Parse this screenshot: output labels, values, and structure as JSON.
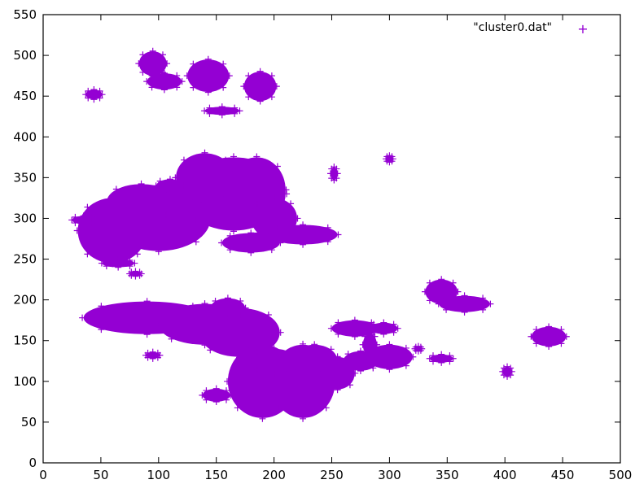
{
  "chart_data": {
    "type": "scatter",
    "title": "",
    "xlabel": "",
    "ylabel": "",
    "xlim": [
      0,
      500
    ],
    "ylim": [
      0,
      550
    ],
    "x_ticks": [
      "0",
      "50",
      "100",
      "150",
      "200",
      "250",
      "300",
      "350",
      "400",
      "450",
      "500"
    ],
    "y_ticks": [
      "0",
      "50",
      "100",
      "150",
      "200",
      "250",
      "300",
      "350",
      "400",
      "450",
      "500",
      "550"
    ],
    "grid": false,
    "legend_position": "top-right",
    "marker": "+",
    "series": [
      {
        "name": "\"cluster0.dat\"",
        "color": "#9400d3",
        "regions": [
          {
            "cx": 100,
            "cy": 300,
            "rx": 45,
            "ry": 40
          },
          {
            "cx": 60,
            "cy": 285,
            "rx": 30,
            "ry": 40
          },
          {
            "cx": 85,
            "cy": 320,
            "rx": 30,
            "ry": 22
          },
          {
            "cx": 35,
            "cy": 298,
            "rx": 10,
            "ry": 5
          },
          {
            "cx": 165,
            "cy": 330,
            "rx": 45,
            "ry": 45
          },
          {
            "cx": 140,
            "cy": 350,
            "rx": 25,
            "ry": 30
          },
          {
            "cx": 185,
            "cy": 335,
            "rx": 25,
            "ry": 40
          },
          {
            "cx": 110,
            "cy": 340,
            "rx": 12,
            "ry": 8
          },
          {
            "cx": 200,
            "cy": 300,
            "rx": 20,
            "ry": 25
          },
          {
            "cx": 225,
            "cy": 280,
            "rx": 30,
            "ry": 12
          },
          {
            "cx": 180,
            "cy": 270,
            "rx": 25,
            "ry": 12
          },
          {
            "cx": 65,
            "cy": 245,
            "rx": 14,
            "ry": 5
          },
          {
            "cx": 80,
            "cy": 232,
            "rx": 5,
            "ry": 3
          },
          {
            "cx": 90,
            "cy": 178,
            "rx": 55,
            "ry": 20
          },
          {
            "cx": 140,
            "cy": 170,
            "rx": 40,
            "ry": 25
          },
          {
            "cx": 170,
            "cy": 160,
            "rx": 35,
            "ry": 30
          },
          {
            "cx": 160,
            "cy": 190,
            "rx": 15,
            "ry": 12
          },
          {
            "cx": 190,
            "cy": 100,
            "rx": 30,
            "ry": 45
          },
          {
            "cx": 225,
            "cy": 100,
            "rx": 28,
            "ry": 45
          },
          {
            "cx": 235,
            "cy": 125,
            "rx": 20,
            "ry": 20
          },
          {
            "cx": 200,
            "cy": 125,
            "rx": 20,
            "ry": 15
          },
          {
            "cx": 255,
            "cy": 110,
            "rx": 15,
            "ry": 20
          },
          {
            "cx": 270,
            "cy": 165,
            "rx": 20,
            "ry": 10
          },
          {
            "cx": 275,
            "cy": 125,
            "rx": 15,
            "ry": 12
          },
          {
            "cx": 300,
            "cy": 130,
            "rx": 20,
            "ry": 15
          },
          {
            "cx": 295,
            "cy": 165,
            "rx": 12,
            "ry": 7
          },
          {
            "cx": 283,
            "cy": 145,
            "rx": 6,
            "ry": 14
          },
          {
            "cx": 150,
            "cy": 83,
            "rx": 12,
            "ry": 8
          },
          {
            "cx": 95,
            "cy": 132,
            "rx": 6,
            "ry": 4
          },
          {
            "cx": 95,
            "cy": 490,
            "rx": 12,
            "ry": 15
          },
          {
            "cx": 105,
            "cy": 468,
            "rx": 15,
            "ry": 10
          },
          {
            "cx": 143,
            "cy": 475,
            "rx": 18,
            "ry": 20
          },
          {
            "cx": 188,
            "cy": 462,
            "rx": 14,
            "ry": 18
          },
          {
            "cx": 155,
            "cy": 432,
            "rx": 15,
            "ry": 5
          },
          {
            "cx": 44,
            "cy": 452,
            "rx": 7,
            "ry": 6
          },
          {
            "cx": 252,
            "cy": 355,
            "rx": 3,
            "ry": 8
          },
          {
            "cx": 300,
            "cy": 373,
            "rx": 3,
            "ry": 4
          },
          {
            "cx": 345,
            "cy": 210,
            "rx": 14,
            "ry": 15
          },
          {
            "cx": 365,
            "cy": 195,
            "rx": 22,
            "ry": 10
          },
          {
            "cx": 345,
            "cy": 128,
            "rx": 10,
            "ry": 5
          },
          {
            "cx": 402,
            "cy": 112,
            "rx": 4,
            "ry": 6
          },
          {
            "cx": 438,
            "cy": 155,
            "rx": 15,
            "ry": 12
          },
          {
            "cx": 325,
            "cy": 140,
            "rx": 3,
            "ry": 3
          }
        ]
      }
    ]
  }
}
